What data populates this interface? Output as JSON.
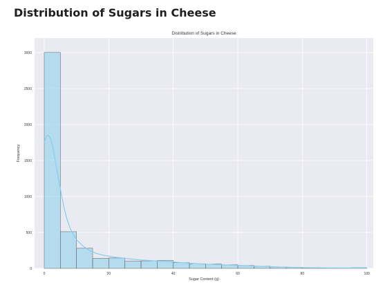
{
  "page": {
    "heading": "Distribution of Sugars in Cheese"
  },
  "colors": {
    "plot_bg": "#eaeaf2",
    "grid": "#ffffff",
    "bar_fill": "#87ceeb",
    "bar_stroke": "#555555",
    "kde_line": "#87ceeb"
  },
  "chart_data": {
    "type": "bar",
    "subtype": "histogram-with-kde",
    "title": "Distribution of Sugars in Cheese",
    "xlabel": "Sugar Content (g)",
    "ylabel": "Frequency",
    "xlim": [
      -3,
      102
    ],
    "ylim": [
      0,
      3200
    ],
    "xticks": [
      0,
      20,
      40,
      60,
      80,
      100
    ],
    "yticks": [
      0,
      500,
      1000,
      1500,
      2000,
      2500,
      3000
    ],
    "grid": true,
    "bin_width": 5,
    "bins": [
      {
        "x0": 0,
        "x1": 5,
        "count": 3000
      },
      {
        "x0": 5,
        "x1": 10,
        "count": 510
      },
      {
        "x0": 10,
        "x1": 15,
        "count": 280
      },
      {
        "x0": 15,
        "x1": 20,
        "count": 140
      },
      {
        "x0": 20,
        "x1": 25,
        "count": 145
      },
      {
        "x0": 25,
        "x1": 30,
        "count": 100
      },
      {
        "x0": 30,
        "x1": 35,
        "count": 105
      },
      {
        "x0": 35,
        "x1": 40,
        "count": 110
      },
      {
        "x0": 40,
        "x1": 45,
        "count": 80
      },
      {
        "x0": 45,
        "x1": 50,
        "count": 65
      },
      {
        "x0": 50,
        "x1": 55,
        "count": 60
      },
      {
        "x0": 55,
        "x1": 60,
        "count": 50
      },
      {
        "x0": 60,
        "x1": 65,
        "count": 40
      },
      {
        "x0": 65,
        "x1": 70,
        "count": 30
      },
      {
        "x0": 70,
        "x1": 75,
        "count": 20
      },
      {
        "x0": 75,
        "x1": 80,
        "count": 15
      },
      {
        "x0": 80,
        "x1": 85,
        "count": 10
      },
      {
        "x0": 85,
        "x1": 90,
        "count": 6
      },
      {
        "x0": 90,
        "x1": 95,
        "count": 4
      },
      {
        "x0": 95,
        "x1": 100,
        "count": 10
      }
    ],
    "kde": {
      "x": [
        0,
        0.5,
        1,
        1.5,
        2,
        2.5,
        3,
        4,
        5,
        6,
        7,
        8,
        9,
        10,
        12,
        14,
        16,
        18,
        20,
        22,
        24,
        26,
        28,
        30,
        33,
        36,
        40,
        45,
        50,
        55,
        60,
        65,
        70,
        75,
        80,
        85,
        90,
        95,
        100
      ],
      "y": [
        1750,
        1820,
        1850,
        1840,
        1800,
        1720,
        1600,
        1350,
        1100,
        870,
        690,
        560,
        470,
        400,
        310,
        250,
        210,
        185,
        170,
        155,
        145,
        135,
        125,
        118,
        110,
        100,
        88,
        72,
        60,
        50,
        42,
        33,
        24,
        17,
        12,
        8,
        6,
        6,
        7
      ]
    }
  }
}
